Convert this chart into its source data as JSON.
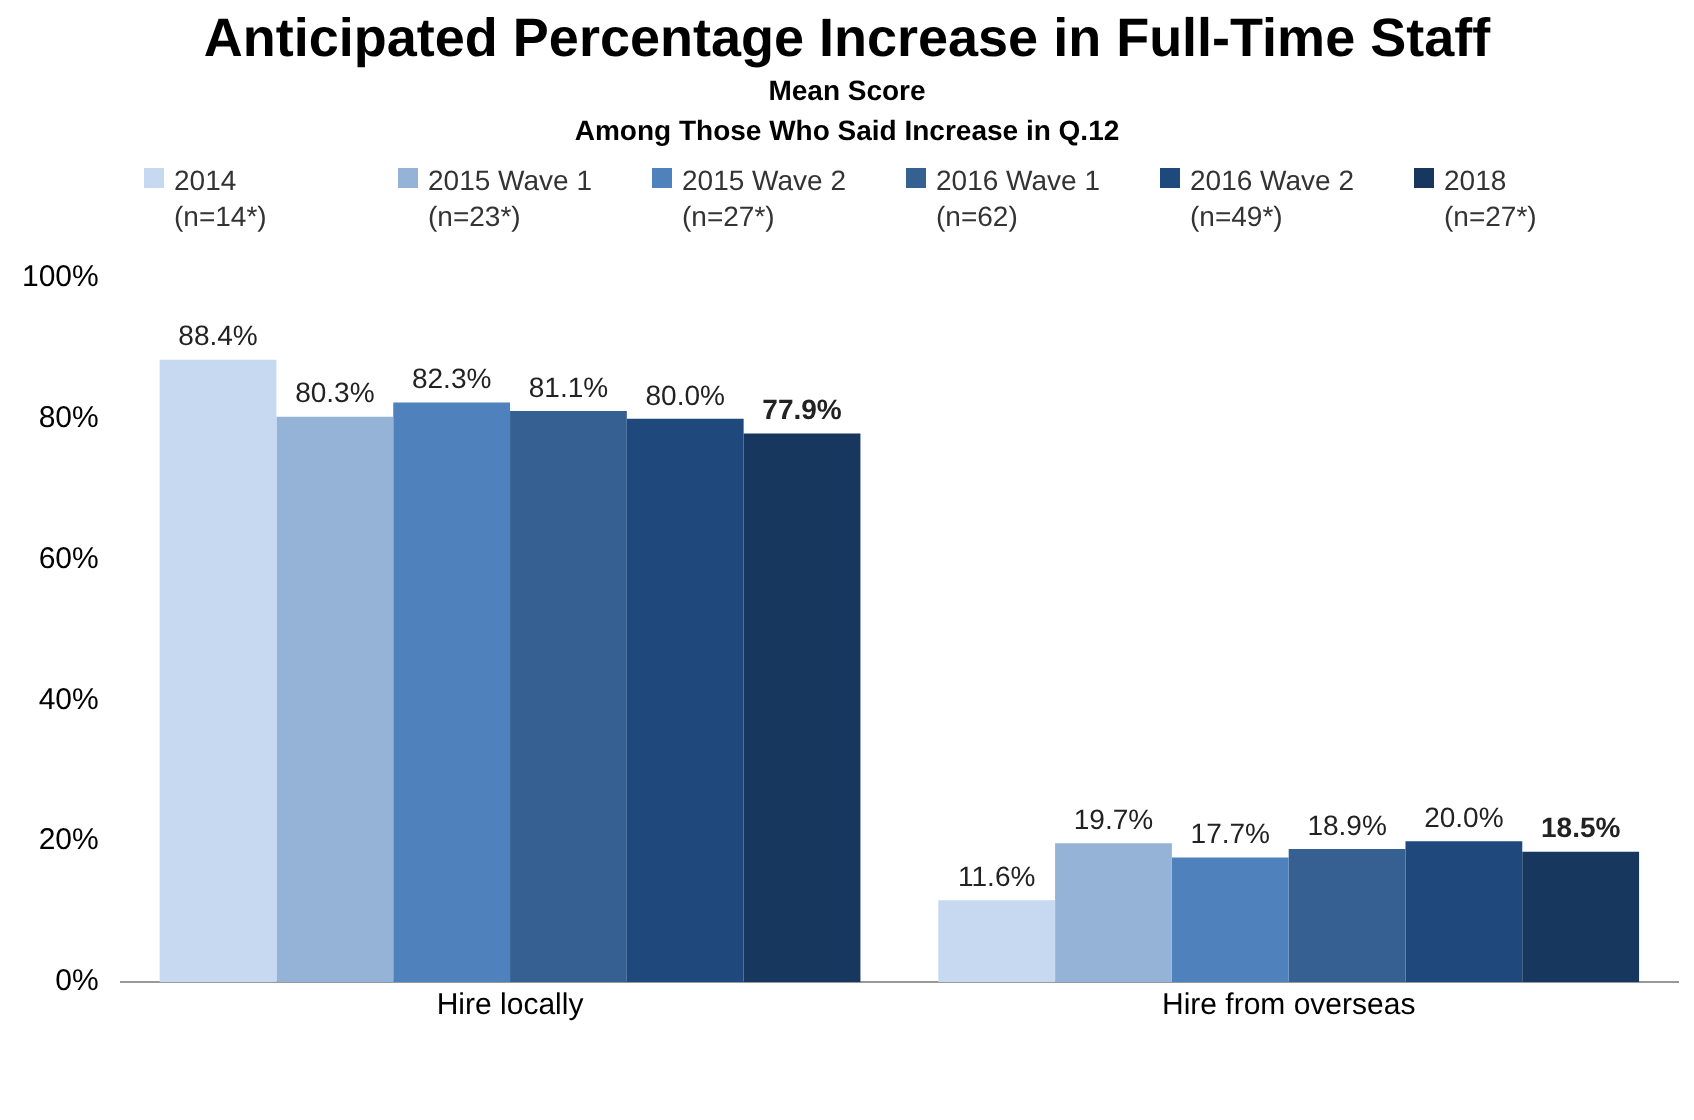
{
  "chart_data": {
    "type": "bar",
    "title": "Anticipated Percentage Increase in Full-Time Staff",
    "subtitle": "Mean Score\nAmong Those Who Said Increase in Q.12",
    "categories": [
      "Hire locally",
      "Hire from overseas"
    ],
    "series": [
      {
        "name": "2014 (n=14*)",
        "color": "#c6d9f1",
        "values": [
          88.4,
          11.6
        ]
      },
      {
        "name": "2015 Wave 1 (n=23*)",
        "color": "#95b3d7",
        "values": [
          80.3,
          19.7
        ]
      },
      {
        "name": "2015 Wave 2 (n=27*)",
        "color": "#4f81bd",
        "values": [
          82.3,
          17.7
        ]
      },
      {
        "name": "2016 Wave 1 (n=62)",
        "color": "#376092",
        "values": [
          81.1,
          18.9
        ]
      },
      {
        "name": "2016 Wave 2 (n=49*)",
        "color": "#1f497d",
        "values": [
          80.0,
          20.0
        ]
      },
      {
        "name": "2018 (n=27*)",
        "color": "#17375e",
        "values": [
          77.9,
          18.5
        ]
      }
    ],
    "value_labels": [
      [
        "88.4%",
        "11.6%"
      ],
      [
        "80.3%",
        "19.7%"
      ],
      [
        "82.3%",
        "17.7%"
      ],
      [
        "81.1%",
        "18.9%"
      ],
      [
        "80.0%",
        "20.0%"
      ],
      [
        "77.9%",
        "18.5%"
      ]
    ],
    "ylim": [
      0,
      100
    ],
    "yticks": [
      {
        "value": 0,
        "label": "0%"
      },
      {
        "value": 20,
        "label": "20%"
      },
      {
        "value": 40,
        "label": "40%"
      },
      {
        "value": 60,
        "label": "60%"
      },
      {
        "value": 80,
        "label": "80%"
      },
      {
        "value": 100,
        "label": "100%"
      }
    ],
    "grid": false,
    "legend": "top"
  }
}
